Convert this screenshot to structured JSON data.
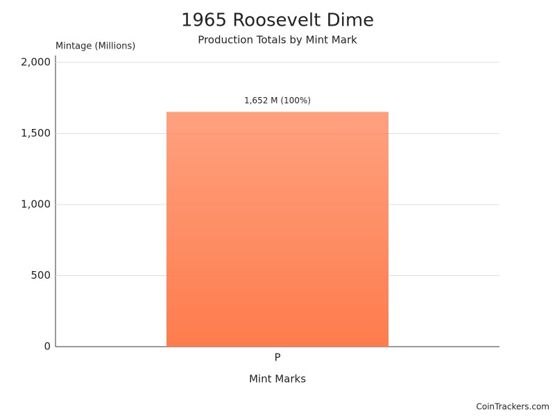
{
  "chart_data": {
    "type": "bar",
    "title": "1965 Roosevelt Dime",
    "subtitle": "Production Totals by Mint Mark",
    "y_label": "Mintage (Millions)",
    "x_label": "Mint Marks",
    "categories": [
      "P"
    ],
    "values": [
      1652
    ],
    "value_labels": [
      "1,652 M (100%)"
    ],
    "color": "#fe7c4d",
    "ylim": [
      0,
      2000
    ],
    "yticks": [
      0,
      500,
      {
        "value": 1000,
        "label": "1,000"
      },
      {
        "value": 1500,
        "label": "1,500"
      },
      {
        "value": 2000,
        "label": "2,000"
      }
    ],
    "grid": true,
    "credit": "CoinTrackers.com"
  }
}
